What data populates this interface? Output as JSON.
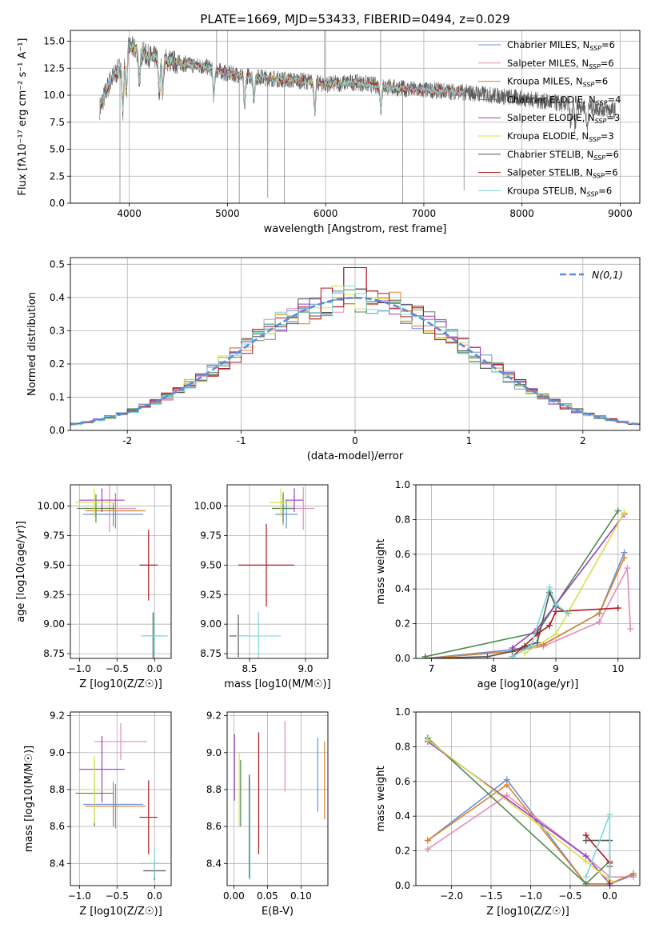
{
  "figure": {
    "title": "PLATE=1669, MJD=53433, FIBERID=0494, z=0.029"
  },
  "series": [
    {
      "name": "Chabrier MILES, N_SSP=6",
      "label_main": "Chabrier MILES, N",
      "label_sub": "SSP",
      "label_tail": "=6",
      "color": "#6a8fd8"
    },
    {
      "name": "Salpeter MILES, N_SSP=6",
      "label_main": "Salpeter MILES, N",
      "label_sub": "SSP",
      "label_tail": "=6",
      "color": "#e58bbb"
    },
    {
      "name": "Kroupa MILES, N_SSP=6",
      "label_main": "Kroupa MILES, N",
      "label_sub": "SSP",
      "label_tail": "=6",
      "color": "#d9822b"
    },
    {
      "name": "Chabrier ELODIE, N_SSP=4",
      "label_main": "Chabrier ELODIE, N",
      "label_sub": "SSP",
      "label_tail": "=4",
      "color": "#4f8a4f"
    },
    {
      "name": "Salpeter ELODIE, N_SSP=3",
      "label_main": "Salpeter ELODIE, N",
      "label_sub": "SSP",
      "label_tail": "=3",
      "color": "#9b3fbf"
    },
    {
      "name": "Kroupa ELODIE, N_SSP=3",
      "label_main": "Kroupa ELODIE, N",
      "label_sub": "SSP",
      "label_tail": "=3",
      "color": "#d8e04a"
    },
    {
      "name": "Chabrier STELIB, N_SSP=6",
      "label_main": "Chabrier STELIB, N",
      "label_sub": "SSP",
      "label_tail": "=6",
      "color": "#555555"
    },
    {
      "name": "Salpeter STELIB, N_SSP=6",
      "label_main": "Salpeter STELIB, N",
      "label_sub": "SSP",
      "label_tail": "=6",
      "color": "#b0161c"
    },
    {
      "name": "Kroupa STELIB, N_SSP=6",
      "label_main": "Kroupa STELIB, N",
      "label_sub": "SSP",
      "label_tail": "=6",
      "color": "#7fd6d6"
    }
  ],
  "chart_data": [
    {
      "id": "spectrum",
      "type": "line",
      "xlabel": "wavelength [Angstrom, rest frame]",
      "ylabel": "Flux [f$_\\lambda$10$^{-17}$ erg cm$^{-2}$ s$^{-1}$ A$^{-1}$]",
      "xlim": [
        3400,
        9200
      ],
      "ylim": [
        0,
        16
      ],
      "xticks": [
        4000,
        5000,
        6000,
        7000,
        8000,
        9000
      ],
      "yticks": [
        0.0,
        2.5,
        5.0,
        7.5,
        10.0,
        12.5,
        15.0
      ],
      "legend": "top-right",
      "continuum": {
        "x": [
          3700,
          3800,
          3900,
          4000,
          4200,
          4500,
          4800,
          5000,
          5200,
          5500,
          5800,
          6000,
          6300,
          6600,
          6900,
          7200,
          7500,
          7800,
          8100,
          8400,
          8700,
          8950
        ],
        "y": [
          8.8,
          11.2,
          12.5,
          14.5,
          13.6,
          13.0,
          12.6,
          12.0,
          11.8,
          11.5,
          11.3,
          11.0,
          11.2,
          10.8,
          10.5,
          10.4,
          10.2,
          9.9,
          9.6,
          9.2,
          8.9,
          8.6
        ]
      },
      "absorption_features": [
        {
          "x": 3935,
          "depth": 4.5
        },
        {
          "x": 3970,
          "depth": 3.5
        },
        {
          "x": 4102,
          "depth": 3.0
        },
        {
          "x": 4305,
          "depth": 3.5
        },
        {
          "x": 4340,
          "depth": 2.8
        },
        {
          "x": 4861,
          "depth": 2.5
        },
        {
          "x": 5175,
          "depth": 2.8
        },
        {
          "x": 5270,
          "depth": 2.0
        },
        {
          "x": 5890,
          "depth": 2.5
        },
        {
          "x": 6563,
          "depth": 2.0
        },
        {
          "x": 8498,
          "depth": 1.8
        },
        {
          "x": 8542,
          "depth": 2.0
        },
        {
          "x": 8662,
          "depth": 1.9
        }
      ],
      "spikes": [
        {
          "x": 3905,
          "y": 0.0
        },
        {
          "x": 5120,
          "y": 0.0
        },
        {
          "x": 5410,
          "y": 0.5
        },
        {
          "x": 5580,
          "y": 0.0
        },
        {
          "x": 6785,
          "y": 0.0
        },
        {
          "x": 7410,
          "y": 1.2
        },
        {
          "x": 6560,
          "y": 16.0
        },
        {
          "x": 4890,
          "y": 16.0
        },
        {
          "x": 5990,
          "y": 16.0
        }
      ]
    },
    {
      "id": "residuals",
      "type": "line",
      "xlabel": "(data-model)/error",
      "ylabel": "Normed distribution",
      "xlim": [
        -2.5,
        2.5
      ],
      "ylim": [
        0,
        0.52
      ],
      "xticks": [
        -2,
        -1,
        0,
        1,
        2
      ],
      "yticks": [
        0.0,
        0.1,
        0.2,
        0.3,
        0.4,
        0.5
      ],
      "legend_label": "N(0,1)",
      "bin_width": 0.1,
      "legend": "top-right"
    },
    {
      "id": "age_vs_Z",
      "type": "scatter",
      "xlabel": "Z [log10(Z/Z☉)]",
      "ylabel": "age  [log10(age/yr)]",
      "xlim": [
        -1.12,
        0.22
      ],
      "ylim": [
        8.71,
        10.18
      ],
      "xticks": [
        -1.0,
        -0.5,
        0.0
      ],
      "xticklabels": [
        "−1.0",
        "−0.5",
        "0.0"
      ],
      "yticks": [
        8.75,
        9.0,
        9.25,
        9.5,
        9.75,
        10.0
      ],
      "yticklabels": [
        "8.75",
        "9.00",
        "9.25",
        "9.50",
        "9.75",
        "10.00"
      ],
      "points": [
        {
          "s": 0,
          "x": -0.55,
          "xerr": 0.4,
          "y": 9.93,
          "yerr": 0.1
        },
        {
          "s": 1,
          "x": -0.6,
          "xerr": 0.35,
          "y": 9.98,
          "yerr": 0.2
        },
        {
          "s": 2,
          "x": -0.52,
          "xerr": 0.4,
          "y": 9.96,
          "yerr": 0.15
        },
        {
          "s": 3,
          "x": -0.78,
          "xerr": 0.25,
          "y": 9.98,
          "yerr": 0.12
        },
        {
          "s": 4,
          "x": -0.7,
          "xerr": 0.3,
          "y": 10.05,
          "yerr": 0.1
        },
        {
          "s": 5,
          "x": -0.8,
          "xerr": 0.25,
          "y": 10.03,
          "yerr": 0.12
        },
        {
          "s": 6,
          "x": -0.02,
          "xerr": 0.15,
          "y": 8.9,
          "yerr": 0.2
        },
        {
          "s": 7,
          "x": -0.08,
          "xerr": 0.12,
          "y": 9.5,
          "yerr": 0.3
        },
        {
          "s": 8,
          "x": 0.0,
          "xerr": 0.18,
          "y": 8.9,
          "yerr": 0.18
        }
      ]
    },
    {
      "id": "age_vs_mass",
      "type": "scatter",
      "xlabel": "mass [log10(M/M☉)]",
      "ylabel": "",
      "xlim": [
        8.3,
        9.2
      ],
      "ylim": [
        8.71,
        10.18
      ],
      "xticks": [
        8.5,
        9.0
      ],
      "xticklabels": [
        "8.5",
        "9.0"
      ],
      "yticks": [
        8.75,
        9.0,
        9.25,
        9.5,
        9.75,
        10.0
      ],
      "yticklabels": [
        "8.75",
        "9.00",
        "9.25",
        "9.50",
        "9.75",
        "10.00"
      ],
      "points": [
        {
          "s": 0,
          "x": 8.83,
          "xerr": 0.1,
          "y": 9.93,
          "yerr": 0.12
        },
        {
          "s": 1,
          "x": 8.98,
          "xerr": 0.1,
          "y": 9.98,
          "yerr": 0.18
        },
        {
          "s": 2,
          "x": 8.8,
          "xerr": 0.1,
          "y": 9.98,
          "yerr": 0.14
        },
        {
          "s": 3,
          "x": 8.8,
          "xerr": 0.1,
          "y": 9.98,
          "yerr": 0.12
        },
        {
          "s": 4,
          "x": 8.9,
          "xerr": 0.08,
          "y": 10.05,
          "yerr": 0.1
        },
        {
          "s": 5,
          "x": 8.78,
          "xerr": 0.1,
          "y": 10.03,
          "yerr": 0.12
        },
        {
          "s": 6,
          "x": 8.4,
          "xerr": 0.08,
          "y": 8.9,
          "yerr": 0.18
        },
        {
          "s": 7,
          "x": 8.65,
          "xerr": 0.25,
          "y": 9.5,
          "yerr": 0.35
        },
        {
          "s": 8,
          "x": 8.58,
          "xerr": 0.2,
          "y": 8.9,
          "yerr": 0.2
        }
      ]
    },
    {
      "id": "mass_weight_vs_age",
      "type": "line",
      "xlabel": "age  [log10(age/yr)]",
      "ylabel": "mass weight",
      "xlim": [
        6.75,
        10.35
      ],
      "ylim": [
        0,
        1
      ],
      "xticks": [
        7,
        8,
        9,
        10
      ],
      "yticks": [
        0.0,
        0.2,
        0.4,
        0.6,
        0.8,
        1.0
      ],
      "series_points": [
        {
          "s": 0,
          "x": [
            6.9,
            8.3,
            8.8,
            9.7,
            10.1
          ],
          "y": [
            0.0,
            0.05,
            0.08,
            0.26,
            0.61
          ]
        },
        {
          "s": 1,
          "x": [
            6.9,
            8.3,
            8.8,
            9.7,
            10.15,
            10.2
          ],
          "y": [
            0.0,
            0.04,
            0.07,
            0.21,
            0.52,
            0.17
          ]
        },
        {
          "s": 2,
          "x": [
            6.9,
            8.3,
            8.8,
            9.7,
            10.1
          ],
          "y": [
            0.0,
            0.04,
            0.08,
            0.26,
            0.58
          ]
        },
        {
          "s": 3,
          "x": [
            6.9,
            8.7,
            10.0
          ],
          "y": [
            0.01,
            0.15,
            0.85
          ]
        },
        {
          "s": 4,
          "x": [
            8.3,
            8.7,
            10.1
          ],
          "y": [
            0.06,
            0.17,
            0.83
          ]
        },
        {
          "s": 5,
          "x": [
            8.5,
            9.0,
            10.1
          ],
          "y": [
            0.03,
            0.14,
            0.84
          ]
        },
        {
          "s": 6,
          "x": [
            6.9,
            7.9,
            8.3,
            8.5,
            8.7,
            8.9,
            9.0,
            9.2
          ],
          "y": [
            0.0,
            0.01,
            0.04,
            0.07,
            0.09,
            0.38,
            0.3,
            0.26
          ]
        },
        {
          "s": 7,
          "x": [
            8.3,
            8.7,
            8.9,
            9.0,
            10.0
          ],
          "y": [
            0.01,
            0.14,
            0.19,
            0.27,
            0.29
          ]
        },
        {
          "s": 8,
          "x": [
            8.3,
            8.6,
            8.9,
            9.0,
            9.2
          ],
          "y": [
            0.01,
            0.07,
            0.41,
            0.31,
            0.26
          ]
        }
      ]
    },
    {
      "id": "mass_vs_Z",
      "type": "scatter",
      "xlabel": "Z [log10(Z/Z☉)]",
      "ylabel": "mass [log10(M/M☉)]",
      "xlim": [
        -1.12,
        0.22
      ],
      "ylim": [
        8.28,
        9.22
      ],
      "xticks": [
        -1.0,
        -0.5,
        0.0
      ],
      "xticklabels": [
        "−1.0",
        "−0.5",
        "0.0"
      ],
      "yticks": [
        8.4,
        8.6,
        8.8,
        9.0,
        9.2
      ],
      "yticklabels": [
        "8.4",
        "8.6",
        "8.8",
        "9.0",
        "9.2"
      ],
      "points": [
        {
          "s": 0,
          "x": -0.55,
          "xerr": 0.4,
          "y": 8.72,
          "yerr": 0.12
        },
        {
          "s": 1,
          "x": -0.45,
          "xerr": 0.35,
          "y": 9.06,
          "yerr": 0.1
        },
        {
          "s": 2,
          "x": -0.52,
          "xerr": 0.4,
          "y": 8.71,
          "yerr": 0.12
        },
        {
          "s": 3,
          "x": -0.8,
          "xerr": 0.25,
          "y": 8.78,
          "yerr": 0.18
        },
        {
          "s": 4,
          "x": -0.7,
          "xerr": 0.3,
          "y": 8.91,
          "yerr": 0.18
        },
        {
          "s": 5,
          "x": -0.8,
          "xerr": 0.25,
          "y": 8.8,
          "yerr": 0.18
        },
        {
          "s": 6,
          "x": 0.0,
          "xerr": 0.15,
          "y": 8.36,
          "yerr": 0.05
        },
        {
          "s": 7,
          "x": -0.08,
          "xerr": 0.12,
          "y": 8.65,
          "yerr": 0.2
        },
        {
          "s": 8,
          "x": 0.0,
          "xerr": 0.18,
          "y": 8.4,
          "yerr": 0.08
        }
      ]
    },
    {
      "id": "mass_vs_ebv",
      "type": "scatter",
      "xlabel": "E(B-V)",
      "ylabel": "",
      "xlim": [
        -0.01,
        0.14
      ],
      "ylim": [
        8.28,
        9.22
      ],
      "xticks": [
        0.0,
        0.05,
        0.1
      ],
      "xticklabels": [
        "0.00",
        "0.05",
        "0.10"
      ],
      "yticks": [
        8.4,
        8.6,
        8.8,
        9.0,
        9.2
      ],
      "yticklabels": [
        "8.4",
        "8.6",
        "8.8",
        "9.0",
        "9.2"
      ],
      "points": [
        {
          "s": 0,
          "x": 0.125,
          "xerr": 0.0,
          "y": 8.88,
          "yerr": 0.2
        },
        {
          "s": 1,
          "x": 0.076,
          "xerr": 0.0,
          "y": 8.98,
          "yerr": 0.19
        },
        {
          "s": 2,
          "x": 0.135,
          "xerr": 0.0,
          "y": 8.85,
          "yerr": 0.21
        },
        {
          "s": 3,
          "x": 0.01,
          "xerr": 0.0,
          "y": 8.78,
          "yerr": 0.18
        },
        {
          "s": 4,
          "x": 0.001,
          "xerr": 0.0,
          "y": 8.92,
          "yerr": 0.18
        },
        {
          "s": 5,
          "x": 0.008,
          "xerr": 0.0,
          "y": 8.8,
          "yerr": 0.2
        },
        {
          "s": 6,
          "x": 0.023,
          "xerr": 0.0,
          "y": 8.6,
          "yerr": 0.28
        },
        {
          "s": 7,
          "x": 0.037,
          "xerr": 0.0,
          "y": 8.78,
          "yerr": 0.33
        },
        {
          "s": 8,
          "x": 0.024,
          "xerr": 0.0,
          "y": 8.58,
          "yerr": 0.27
        }
      ]
    },
    {
      "id": "mass_weight_vs_Z",
      "type": "line",
      "xlabel": "Z [log10(Z/Z☉)]",
      "ylabel": "mass weight",
      "xlim": [
        -2.45,
        0.38
      ],
      "ylim": [
        0,
        1
      ],
      "xticks": [
        -2.0,
        -1.5,
        -1.0,
        -0.5,
        0.0
      ],
      "xticklabels": [
        "−2.0",
        "−1.5",
        "−1.0",
        "−0.5",
        "0.0"
      ],
      "yticks": [
        0.0,
        0.2,
        0.4,
        0.6,
        0.8,
        1.0
      ],
      "series_points": [
        {
          "s": 0,
          "x": [
            -2.3,
            -1.3,
            -0.3,
            0.0,
            0.3
          ],
          "y": [
            0.26,
            0.61,
            0.01,
            0.01,
            0.06
          ]
        },
        {
          "s": 1,
          "x": [
            -2.3,
            -1.3,
            -0.3,
            0.0,
            0.3
          ],
          "y": [
            0.21,
            0.52,
            0.17,
            0.05,
            0.05
          ]
        },
        {
          "s": 2,
          "x": [
            -2.3,
            -1.3,
            -0.3,
            0.0,
            0.3
          ],
          "y": [
            0.26,
            0.58,
            0.01,
            0.01,
            0.07
          ]
        },
        {
          "s": 3,
          "x": [
            -2.3,
            -0.3,
            0.0
          ],
          "y": [
            0.85,
            0.01,
            0.14
          ]
        },
        {
          "s": 4,
          "x": [
            -2.3,
            -0.3,
            0.0
          ],
          "y": [
            0.83,
            0.17,
            0.01
          ]
        },
        {
          "s": 5,
          "x": [
            -2.3,
            -0.3,
            0.0
          ],
          "y": [
            0.84,
            0.14,
            0.03
          ]
        },
        {
          "s": 6,
          "x": [
            -0.3,
            0.0,
            0.0
          ],
          "y": [
            0.26,
            0.26,
            0.11
          ]
        },
        {
          "s": 7,
          "x": [
            -0.3,
            0.0,
            0.0
          ],
          "y": [
            0.29,
            0.13,
            0.0
          ]
        },
        {
          "s": 8,
          "x": [
            -0.3,
            0.0,
            0.0
          ],
          "y": [
            0.05,
            0.41,
            0.05
          ]
        }
      ]
    }
  ]
}
